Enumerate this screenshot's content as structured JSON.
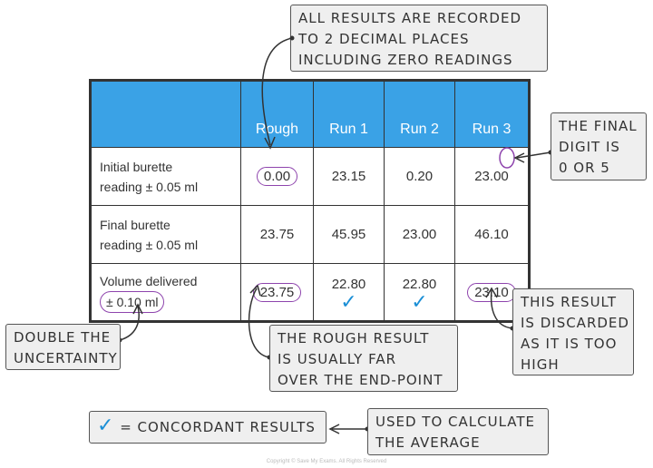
{
  "callouts": {
    "top": [
      "ALL RESULTS ARE RECORDED",
      "TO 2 DECIMAL PLACES",
      "INCLUDING ZERO READINGS"
    ],
    "final_digit": [
      "THE FINAL",
      "DIGIT IS",
      "0 OR 5"
    ],
    "double": [
      "DOUBLE THE",
      "UNCERTAINTY"
    ],
    "rough": [
      "THE ROUGH RESULT",
      "IS USUALLY FAR",
      "OVER THE END-POINT"
    ],
    "discarded": [
      "THIS RESULT",
      "IS DISCARDED",
      "AS IT IS TOO",
      "HIGH"
    ],
    "average": [
      "USED TO CALCULATE",
      "THE AVERAGE"
    ]
  },
  "legend": {
    "tick": "✓",
    "text": "= CONCORDANT RESULTS"
  },
  "table": {
    "headers": [
      "",
      "Rough",
      "Run 1",
      "Run 2",
      "Run 3"
    ],
    "rows": [
      {
        "label": [
          "Initial burette",
          "reading  ± 0.05 ml"
        ],
        "values": [
          "0.00",
          "23.15",
          "0.20",
          "23.00"
        ]
      },
      {
        "label": [
          "Final burette",
          "reading  ± 0.05 ml"
        ],
        "values": [
          "23.75",
          "45.95",
          "23.00",
          "46.10"
        ]
      },
      {
        "label": [
          "Volume delivered",
          "± 0.10 ml"
        ],
        "values": [
          "23.75",
          "22.80",
          "22.80",
          "23.10"
        ]
      }
    ],
    "tick": "✓"
  },
  "copyright": "Copyright © Save My Exams. All Rights Reserved",
  "colors": {
    "header": "#3aa2e6",
    "circle": "#8e44ad",
    "tick": "#1b8fd6"
  }
}
